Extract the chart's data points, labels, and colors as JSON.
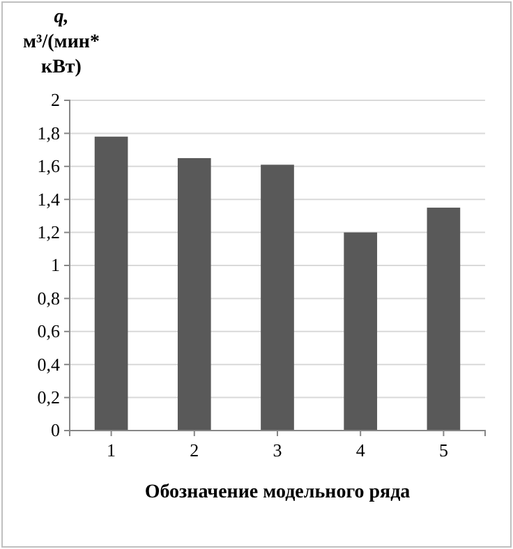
{
  "chart_data": {
    "type": "bar",
    "ylabel": "q, м³/(мин* кВт)",
    "xlabel": "Обозначение модельного ряда",
    "categories": [
      "1",
      "2",
      "3",
      "4",
      "5"
    ],
    "values": [
      1.78,
      1.65,
      1.61,
      1.2,
      1.35
    ],
    "color": "#595959",
    "ylim": [
      0,
      2
    ],
    "yticks": [
      0,
      {
        "value": 0.2,
        "label": "0,2"
      },
      {
        "value": 0.4,
        "label": "0,4"
      },
      {
        "value": 0.6,
        "label": "0,6"
      },
      {
        "value": 0.8,
        "label": "0,8"
      },
      1,
      {
        "value": 1.2,
        "label": "1,2"
      },
      {
        "value": 1.4,
        "label": "1,4"
      },
      {
        "value": 1.6,
        "label": "1,6"
      },
      {
        "value": 1.8,
        "label": "1,8"
      },
      2
    ],
    "grid": "y"
  }
}
